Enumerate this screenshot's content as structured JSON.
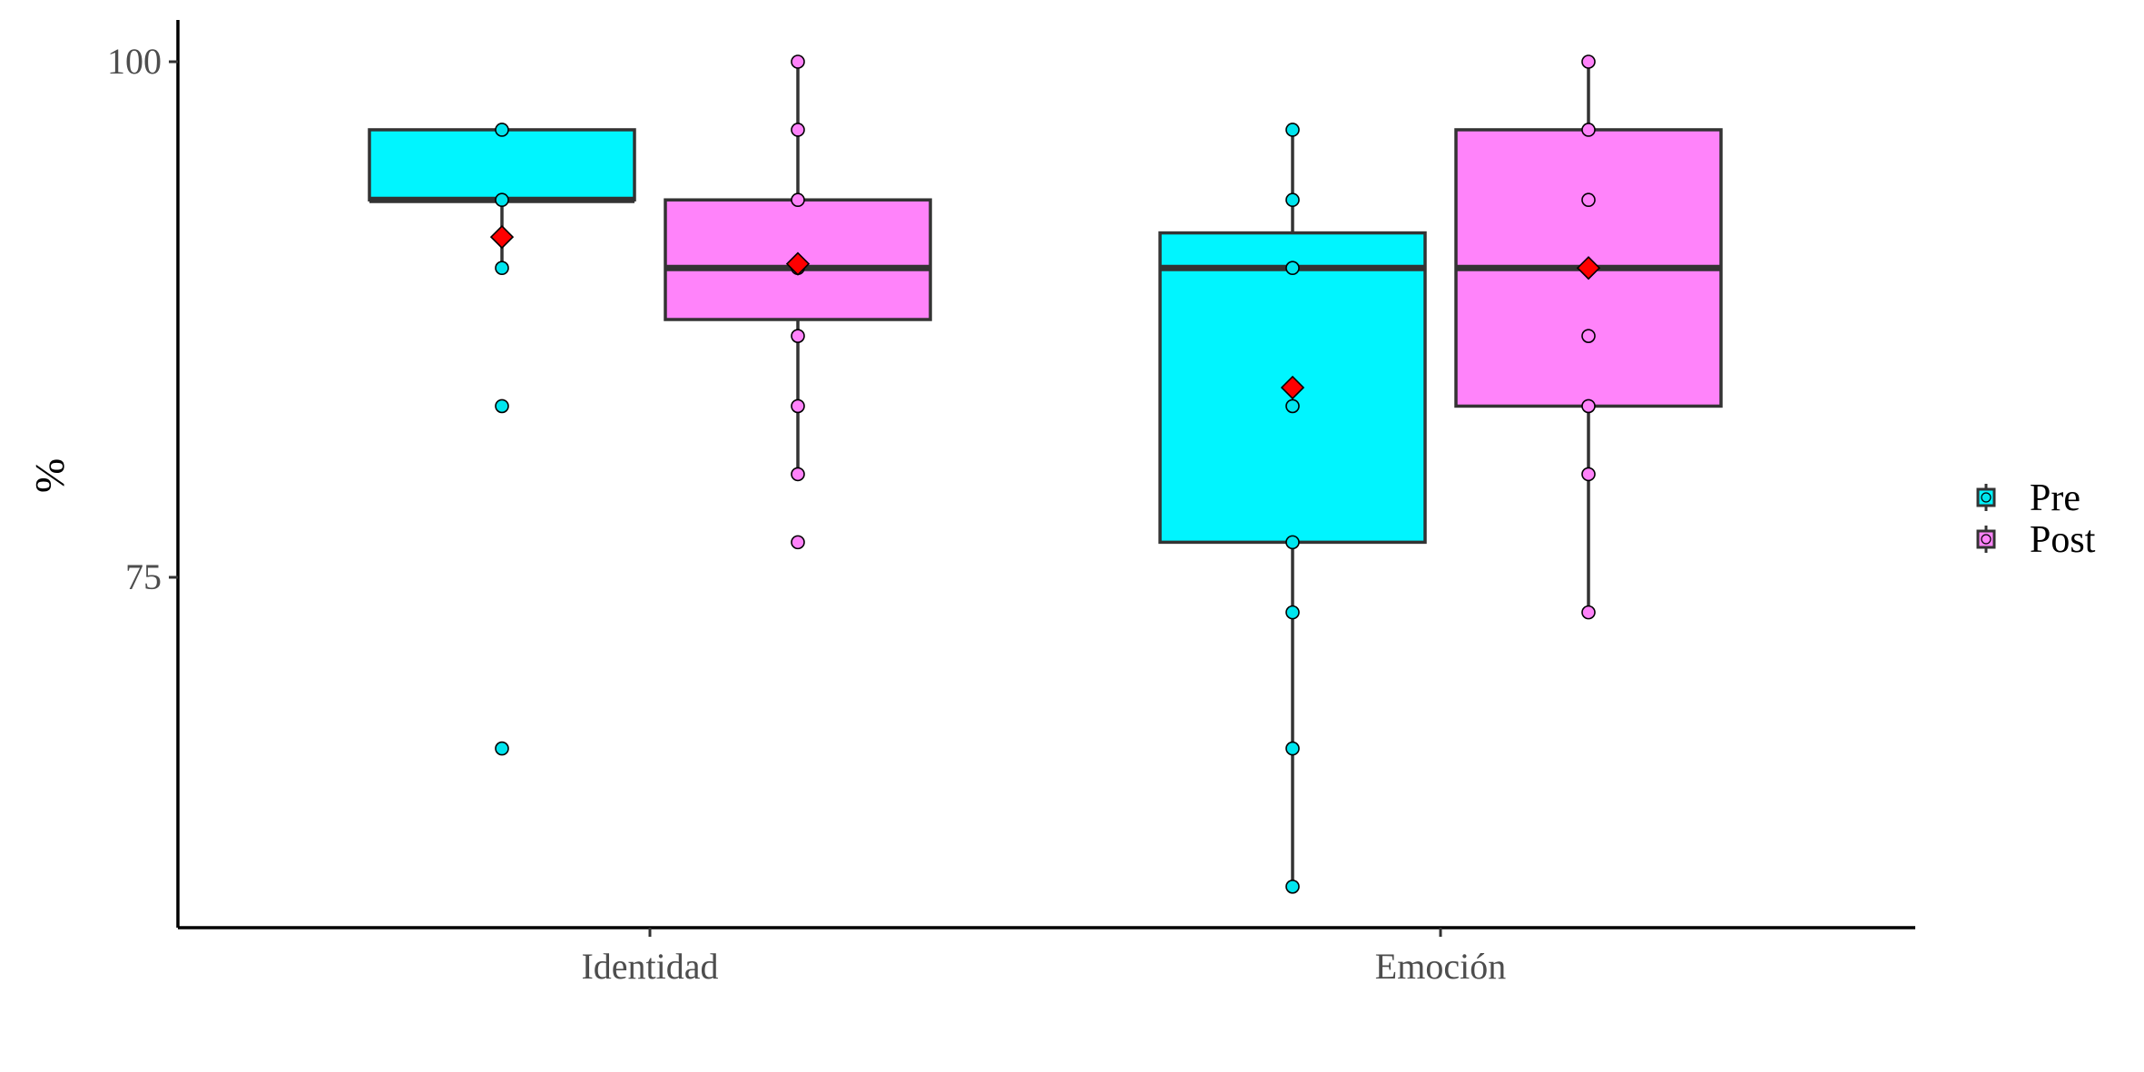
{
  "chart_data": {
    "type": "box",
    "title": "",
    "xlabel": "",
    "ylabel": "%",
    "ylim": [
      58,
      102
    ],
    "yticks": [
      75,
      100
    ],
    "ytick_labels": [
      "75",
      "100"
    ],
    "categories": [
      "Identidad",
      "Emoción"
    ],
    "legend_position": "right",
    "mean_marker_color": "#ff0000",
    "series": [
      {
        "name": "Pre",
        "color": "#00f5ff",
        "point_color": "#00e5ee",
        "boxes": [
          {
            "category": "Identidad",
            "lower_whisker": 90,
            "q1": 93.3,
            "median": 93.3,
            "q3": 96.7,
            "upper_whisker": 96.7,
            "mean": 91.5,
            "points": [
              96.7,
              93.3,
              90,
              83.3,
              66.7
            ]
          },
          {
            "category": "Emoción",
            "lower_whisker": 60,
            "q1": 76.7,
            "median": 90,
            "q3": 91.7,
            "upper_whisker": 96.7,
            "mean": 84.2,
            "points": [
              96.7,
              93.3,
              90,
              83.3,
              76.7,
              73.3,
              66.7,
              60
            ]
          }
        ]
      },
      {
        "name": "Post",
        "color": "#ff83fa",
        "point_color": "#ff83fa",
        "boxes": [
          {
            "category": "Identidad",
            "lower_whisker": 80,
            "q1": 87.5,
            "median": 90,
            "q3": 93.3,
            "upper_whisker": 100,
            "mean": 90.2,
            "points": [
              100,
              96.7,
              93.3,
              90,
              86.7,
              83.3,
              80,
              76.7
            ]
          },
          {
            "category": "Emoción",
            "lower_whisker": 73.3,
            "q1": 83.3,
            "median": 90,
            "q3": 96.7,
            "upper_whisker": 100,
            "mean": 90,
            "points": [
              100,
              96.7,
              93.3,
              90,
              86.7,
              83.3,
              80,
              73.3
            ]
          }
        ]
      }
    ]
  }
}
